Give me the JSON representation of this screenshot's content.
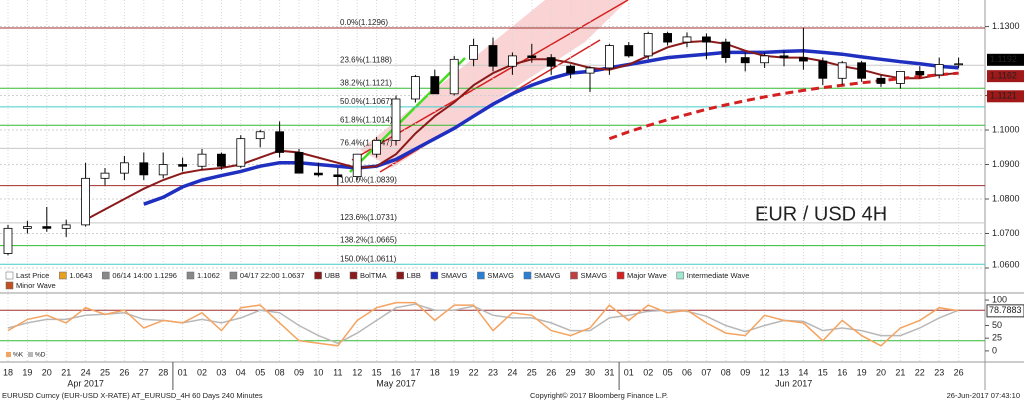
{
  "chart_data": {
    "type": "candlestick",
    "annotation": "EUR / USD 4H",
    "categories": [
      "18",
      "19",
      "20",
      "21",
      "24",
      "25",
      "26",
      "27",
      "28",
      "01",
      "02",
      "03",
      "04",
      "05",
      "08",
      "09",
      "10",
      "11",
      "12",
      "15",
      "16",
      "17",
      "18",
      "19",
      "22",
      "23",
      "24",
      "25",
      "26",
      "29",
      "30",
      "31",
      "01",
      "02",
      "05",
      "06",
      "07",
      "08",
      "09",
      "12",
      "13",
      "14",
      "15",
      "16",
      "19",
      "20",
      "21",
      "22",
      "23",
      "26"
    ],
    "months": [
      "Apr 2017",
      "May 2017",
      "Jun 2017"
    ],
    "open": [
      1.0642,
      1.0715,
      1.072,
      1.0715,
      1.0725,
      1.086,
      1.0875,
      1.0905,
      1.087,
      1.09,
      1.0895,
      1.093,
      1.0895,
      1.0975,
      1.0995,
      1.0935,
      1.0875,
      1.087,
      1.0865,
      1.093,
      1.097,
      1.109,
      1.1155,
      1.1105,
      1.1205,
      1.1245,
      1.1185,
      1.1215,
      1.121,
      1.1185,
      1.1165,
      1.118,
      1.1245,
      1.1215,
      1.128,
      1.1255,
      1.127,
      1.1255,
      1.121,
      1.1195,
      1.1215,
      1.121,
      1.12,
      1.115,
      1.1195,
      1.115,
      1.1135,
      1.117,
      1.116,
      1.119
    ],
    "high": [
      1.0725,
      1.0737,
      1.0777,
      1.074,
      1.0905,
      1.089,
      1.0925,
      1.0935,
      1.0935,
      1.092,
      1.0945,
      1.0935,
      1.0985,
      1.1,
      1.1025,
      1.0945,
      1.0905,
      1.089,
      1.0925,
      1.098,
      1.11,
      1.116,
      1.1175,
      1.1215,
      1.1265,
      1.1268,
      1.1225,
      1.125,
      1.122,
      1.119,
      1.1185,
      1.125,
      1.1255,
      1.1285,
      1.1285,
      1.1283,
      1.128,
      1.1265,
      1.1225,
      1.1225,
      1.123,
      1.1296,
      1.121,
      1.12,
      1.12,
      1.116,
      1.117,
      1.1185,
      1.121,
      1.121
    ],
    "low": [
      1.0637,
      1.07,
      1.0705,
      1.069,
      1.072,
      1.084,
      1.0855,
      1.0855,
      1.086,
      1.088,
      1.0885,
      1.0885,
      1.089,
      1.095,
      1.092,
      1.0875,
      1.0865,
      1.084,
      1.0855,
      1.092,
      1.0955,
      1.108,
      1.111,
      1.11,
      1.1185,
      1.117,
      1.116,
      1.1195,
      1.116,
      1.115,
      1.111,
      1.116,
      1.121,
      1.1205,
      1.1245,
      1.124,
      1.1205,
      1.1195,
      1.117,
      1.118,
      1.1185,
      1.1175,
      1.113,
      1.113,
      1.114,
      1.1125,
      1.112,
      1.115,
      1.115,
      1.118
    ],
    "close": [
      1.0715,
      1.072,
      1.0715,
      1.0725,
      1.086,
      1.0875,
      1.0905,
      1.087,
      1.09,
      1.0895,
      1.093,
      1.0895,
      1.0975,
      1.0995,
      1.0935,
      1.0875,
      1.087,
      1.0865,
      1.093,
      1.097,
      1.109,
      1.1155,
      1.1105,
      1.1205,
      1.1245,
      1.1185,
      1.1215,
      1.121,
      1.1185,
      1.1165,
      1.118,
      1.1245,
      1.1215,
      1.128,
      1.1255,
      1.127,
      1.1255,
      1.121,
      1.1195,
      1.1215,
      1.121,
      1.12,
      1.115,
      1.1195,
      1.115,
      1.1135,
      1.117,
      1.116,
      1.119,
      1.1192
    ],
    "up_color": "#ffffff",
    "down_color": "#000000",
    "series": [
      {
        "color": "#1f2fbf",
        "width": 3.5,
        "dash": false,
        "values": [
          null,
          null,
          null,
          null,
          null,
          null,
          null,
          1.0785,
          1.0805,
          1.0835,
          1.0855,
          1.0868,
          1.088,
          1.0895,
          1.0905,
          1.0905,
          1.09,
          1.0895,
          1.089,
          1.0895,
          1.0915,
          1.0945,
          1.0975,
          1.1005,
          1.104,
          1.1075,
          1.1105,
          1.113,
          1.115,
          1.1165,
          1.117,
          1.118,
          1.119,
          1.12,
          1.121,
          1.1215,
          1.122,
          1.1225,
          1.1225,
          1.1225,
          1.1228,
          1.123,
          1.1225,
          1.122,
          1.1212,
          1.1205,
          1.1198,
          1.1192,
          1.1185,
          1.118
        ]
      },
      {
        "color": "#8b1a1a",
        "width": 2,
        "dash": false,
        "values": [
          null,
          null,
          null,
          null,
          1.074,
          1.077,
          1.08,
          1.083,
          1.0855,
          1.0875,
          1.0885,
          1.089,
          1.09,
          1.092,
          1.094,
          1.0935,
          1.092,
          1.0905,
          1.089,
          1.0895,
          1.093,
          1.099,
          1.104,
          1.108,
          1.113,
          1.1165,
          1.119,
          1.1205,
          1.1205,
          1.1195,
          1.118,
          1.1175,
          1.119,
          1.1215,
          1.124,
          1.1255,
          1.1258,
          1.125,
          1.123,
          1.1215,
          1.121,
          1.121,
          1.12,
          1.1185,
          1.1175,
          1.116,
          1.115,
          1.115,
          1.116,
          1.1165
        ]
      },
      {
        "color": "#d42020",
        "width": 3,
        "dash": true,
        "values": [
          null,
          null,
          null,
          null,
          null,
          null,
          null,
          null,
          null,
          null,
          null,
          null,
          null,
          null,
          null,
          null,
          null,
          null,
          null,
          null,
          null,
          null,
          null,
          null,
          null,
          null,
          null,
          null,
          null,
          null,
          null,
          1.0975,
          1.0995,
          1.1013,
          1.103,
          1.1045,
          1.106,
          1.1073,
          1.1085,
          1.1096,
          1.1106,
          1.1115,
          1.1123,
          1.113,
          1.1137,
          1.1143,
          1.1149,
          1.1155,
          1.116,
          1.1165
        ]
      }
    ],
    "fib_levels": [
      {
        "label": "0.0%(1.1296)",
        "value": 1.1296,
        "color": "#a03030"
      },
      {
        "label": "23.6%(1.1188)",
        "value": 1.1188,
        "color": "#c8c8c8"
      },
      {
        "label": "38.2%(1.1121)",
        "value": 1.1121,
        "color": "#33bb33"
      },
      {
        "label": "50.0%(1.1067)",
        "value": 1.1067,
        "color": "#44cccc"
      },
      {
        "label": "61.8%(1.1014)",
        "value": 1.1014,
        "color": "#33bb33"
      },
      {
        "label": "76.4%(1.0947)",
        "value": 1.0947,
        "color": "#c8c8c8"
      },
      {
        "label": "100.0%(1.0839)",
        "value": 1.0839,
        "color": "#a03030"
      },
      {
        "label": "123.6%(1.0731)",
        "value": 1.0731,
        "color": "#c8c8c8"
      },
      {
        "label": "138.2%(1.0665)",
        "value": 1.0665,
        "color": "#33bb33"
      },
      {
        "label": "150.0%(1.0611)",
        "value": 1.0611,
        "color": "#44cccc"
      }
    ],
    "price_labels": [
      {
        "value": 1.1192,
        "color": "#000000"
      },
      {
        "value": 1.1162,
        "color": "#a01818"
      },
      {
        "value": 1.1121,
        "color": "#a01818"
      }
    ],
    "ylim": [
      1.06,
      1.1377
    ],
    "yticks": [
      {
        "value": 1.13,
        "label": "1.1300"
      },
      {
        "value": 1.11,
        "label": "1.1100"
      },
      {
        "value": 1.1,
        "label": "1.1000"
      },
      {
        "value": 1.09,
        "label": "1.0900"
      },
      {
        "value": 1.08,
        "label": "1.0800"
      },
      {
        "value": 1.07,
        "label": "1.0700"
      },
      {
        "value": 1.06,
        "label": "1.0600"
      }
    ],
    "grid": true,
    "legend": [
      {
        "text": "Last Price",
        "color": "#ffffff"
      },
      {
        "text": "1.0643",
        "color": "#e8a020"
      },
      {
        "text": "06/14 14:00 1.1296",
        "color": "#888888"
      },
      {
        "text": "1.1062",
        "color": "#888888"
      },
      {
        "text": "04/17 22:00 1.0637",
        "color": "#888888"
      },
      {
        "text": "UBB",
        "color": "#8b1a1a"
      },
      {
        "text": "BolTMA",
        "color": "#8b1a1a"
      },
      {
        "text": "LBB",
        "color": "#8b1a1a"
      },
      {
        "text": "SMAVG",
        "color": "#1f2fbf"
      },
      {
        "text": "SMAVG",
        "color": "#2a7fd4"
      },
      {
        "text": "SMAVG",
        "color": "#2a7fd4"
      },
      {
        "text": "SMAVG",
        "color": "#c04040"
      },
      {
        "text": "Major Wave",
        "color": "#d42020"
      },
      {
        "text": "Intermediate Wave",
        "color": "#a0e8d0"
      },
      {
        "text": "Minor Wave",
        "color": "#c05020"
      }
    ],
    "oscillator": {
      "ylim": [
        -14,
        108
      ],
      "yticks": [
        100,
        50,
        25,
        0
      ],
      "levels": [
        {
          "value": 80,
          "color": "#a03030"
        },
        {
          "value": 20,
          "color": "#33bb33"
        }
      ],
      "series": [
        {
          "name": "%K",
          "color": "#f4a460",
          "values": [
            40,
            62,
            70,
            55,
            85,
            72,
            80,
            45,
            60,
            55,
            75,
            40,
            85,
            90,
            55,
            20,
            15,
            10,
            60,
            85,
            95,
            95,
            60,
            90,
            90,
            40,
            75,
            70,
            40,
            30,
            45,
            90,
            60,
            90,
            75,
            80,
            55,
            35,
            30,
            70,
            60,
            55,
            20,
            60,
            30,
            10,
            45,
            60,
            85,
            78.7883
          ]
        },
        {
          "name": "%D",
          "color": "#b8b8b8",
          "values": [
            45,
            55,
            62,
            62,
            70,
            72,
            75,
            62,
            60,
            55,
            62,
            55,
            65,
            80,
            75,
            50,
            30,
            15,
            35,
            60,
            85,
            92,
            80,
            80,
            88,
            70,
            65,
            65,
            55,
            40,
            40,
            65,
            70,
            78,
            80,
            78,
            68,
            50,
            38,
            50,
            60,
            58,
            40,
            45,
            40,
            30,
            30,
            45,
            65,
            80
          ]
        }
      ]
    },
    "footer": {
      "left": "EURUSD Curncy (EUR-USD X-RATE) AT_EURUSD_4H 60 Days 240 Minutes",
      "center": "Copyright© 2017 Bloomberg Finance L.P.",
      "right": "26-Jun-2017 07:43:10"
    }
  }
}
